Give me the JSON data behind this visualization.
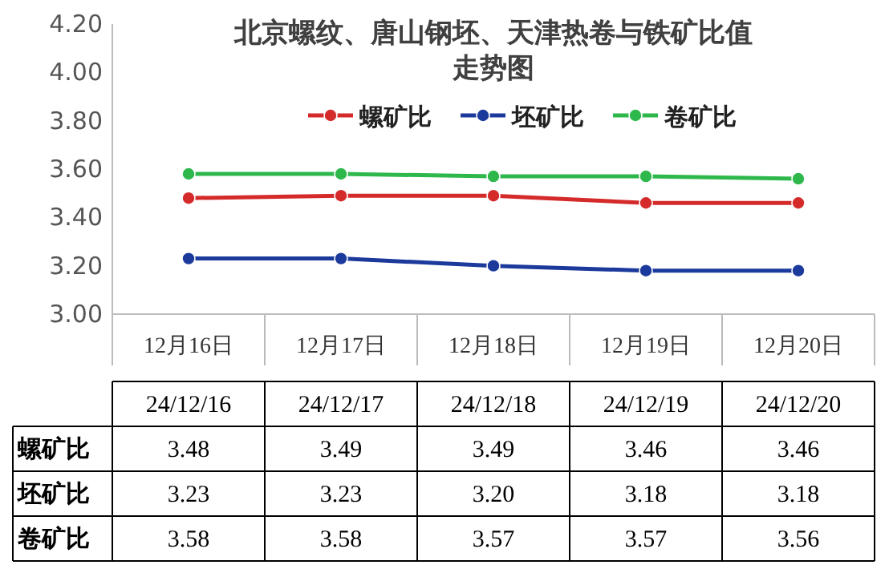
{
  "chart_data": {
    "type": "line",
    "title": "北京螺纹、唐山钢坯、天津热卷与铁矿比值走势图",
    "categories": [
      "12月16日",
      "12月17日",
      "12月18日",
      "12月19日",
      "12月20日"
    ],
    "series": [
      {
        "name": "螺矿比",
        "color": "#d42a2a",
        "values": [
          3.48,
          3.49,
          3.49,
          3.46,
          3.46
        ],
        "value_labels": [
          "3.48",
          "3.49",
          "3.49",
          "3.46",
          "3.46"
        ]
      },
      {
        "name": "坯矿比",
        "color": "#1b3a9c",
        "values": [
          3.23,
          3.23,
          3.2,
          3.18,
          3.18
        ],
        "value_labels": [
          "3.23",
          "3.23",
          "3.20",
          "3.18",
          "3.18"
        ]
      },
      {
        "name": "卷矿比",
        "color": "#2eb84c",
        "values": [
          3.58,
          3.58,
          3.57,
          3.57,
          3.56
        ],
        "value_labels": [
          "3.58",
          "3.58",
          "3.57",
          "3.57",
          "3.56"
        ]
      }
    ],
    "ylim": [
      3.0,
      4.2
    ],
    "yticks": [
      {
        "value": 3.0,
        "label": "3.00"
      },
      {
        "value": 3.2,
        "label": "3.20"
      },
      {
        "value": 3.4,
        "label": "3.40"
      },
      {
        "value": 3.6,
        "label": "3.60"
      },
      {
        "value": 3.8,
        "label": "3.80"
      },
      {
        "value": 4.0,
        "label": "4.00"
      },
      {
        "value": 4.2,
        "label": "4.20"
      }
    ],
    "annotations": [
      "24/12/16",
      "24/12/17",
      "24/12/18",
      "24/12/19",
      "24/12/20"
    ],
    "legend": "top",
    "marker": "circle",
    "line_style": "solid",
    "grid": false
  }
}
